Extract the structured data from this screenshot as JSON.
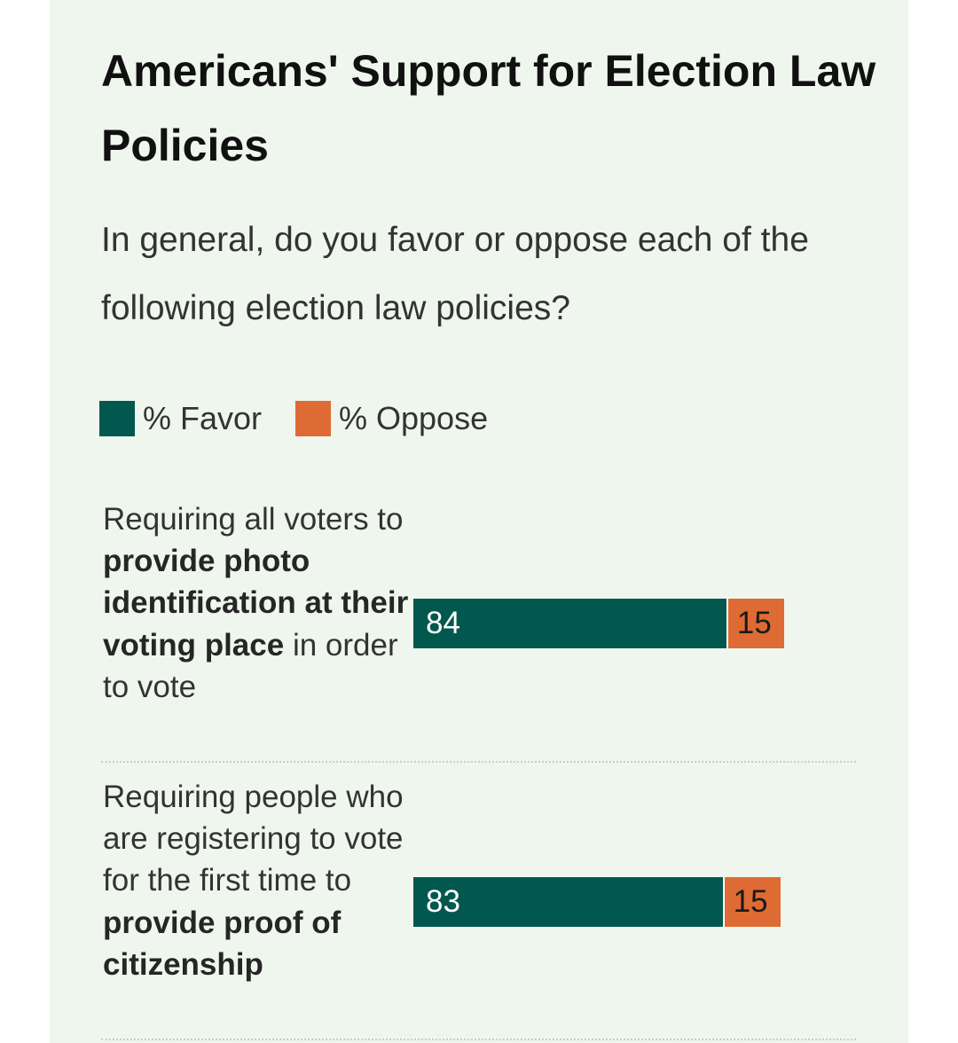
{
  "chart_data": {
    "type": "bar",
    "orientation": "horizontal-stacked",
    "title": "Americans' Support for Election Law Policies",
    "subtitle": "In general, do you favor or oppose each of the following election law policies?",
    "legend": [
      {
        "name": "% Favor",
        "color": "#02584f"
      },
      {
        "name": "% Oppose",
        "color": "#de6b33"
      }
    ],
    "categories": [
      [
        {
          "text": "Requiring all voters to ",
          "bold": false
        },
        {
          "text": "provide photo identification at their voting place",
          "bold": true
        },
        {
          "text": " in order to vote",
          "bold": false
        }
      ],
      [
        {
          "text": "Requiring people who are registering to vote for the first time to ",
          "bold": false
        },
        {
          "text": "provide proof of citizenship",
          "bold": true
        }
      ]
    ],
    "series": [
      {
        "name": "% Favor",
        "values": [
          84,
          83
        ]
      },
      {
        "name": "% Oppose",
        "values": [
          15,
          15
        ]
      }
    ],
    "xlim": [
      0,
      100
    ]
  }
}
